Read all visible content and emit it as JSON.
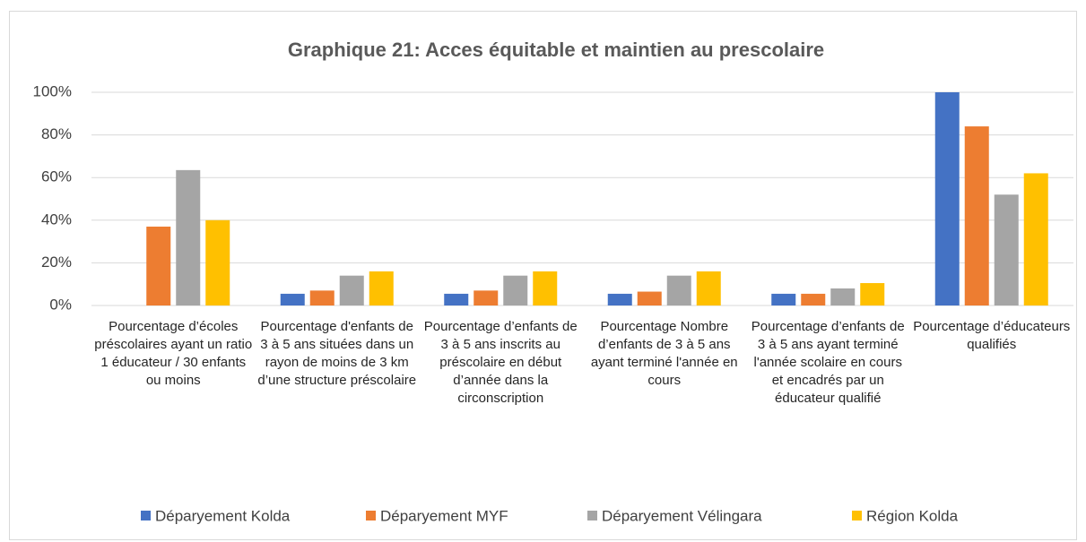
{
  "chart_data": {
    "type": "bar",
    "title": "Graphique 21: Acces équitable et maintien au prescolaire",
    "categories": [
      "Pourcentage d’écoles préscolaires ayant un ratio 1 éducateur  / 30 enfants ou moins",
      "Pourcentage d'enfants de 3 à 5 ans situées dans un rayon de moins de 3 km d’une structure préscolaire",
      "Pourcentage d’enfants de 3 à 5 ans inscrits au préscolaire en début d’année dans la circonscription",
      "Pourcentage Nombre d’enfants de 3 à 5 ans ayant terminé l'année en cours",
      "Pourcentage d’enfants de 3 à 5 ans ayant terminé l'année scolaire en cours et encadrés par un éducateur qualifié",
      "Pourcentage d’éducateurs qualifiés"
    ],
    "series": [
      {
        "name": "Déparyement Kolda",
        "color": "#4472c4",
        "values": [
          0,
          5.5,
          5.5,
          5.5,
          5.5,
          100
        ]
      },
      {
        "name": "Déparyement MYF",
        "color": "#ed7d31",
        "values": [
          37,
          7,
          7,
          6.5,
          5.5,
          84
        ]
      },
      {
        "name": "Déparyement Vélingara",
        "color": "#a5a5a5",
        "values": [
          63.5,
          14,
          14,
          14,
          8,
          52
        ]
      },
      {
        "name": "Région Kolda",
        "color": "#ffc000",
        "values": [
          40,
          16,
          16,
          16,
          10.5,
          62
        ]
      }
    ],
    "ylim": [
      0,
      100
    ],
    "yticks": [
      {
        "value": 0,
        "label": "0%"
      },
      {
        "value": 20,
        "label": "20%"
      },
      {
        "value": 40,
        "label": "40%"
      },
      {
        "value": 60,
        "label": "60%"
      },
      {
        "value": 80,
        "label": "80%"
      },
      {
        "value": 100,
        "label": "100%"
      }
    ],
    "grid": true,
    "legend": "bottom"
  }
}
